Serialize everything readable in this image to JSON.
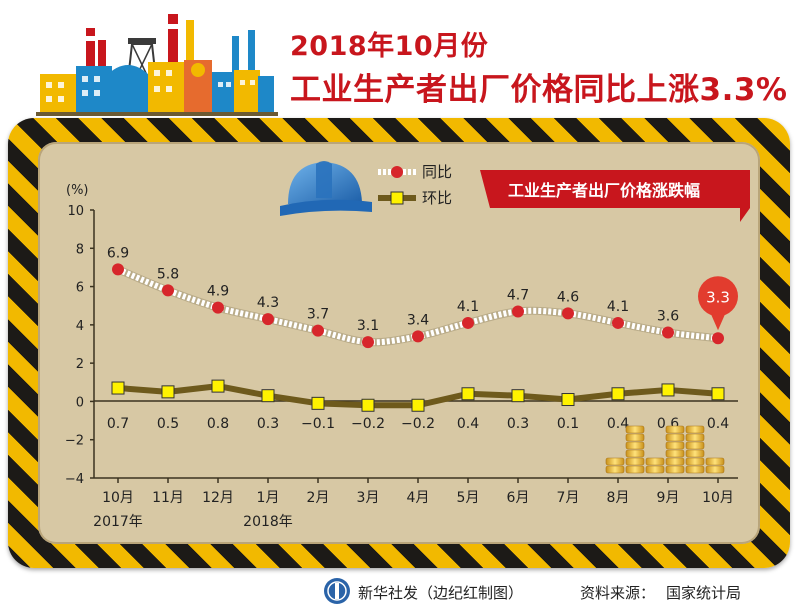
{
  "title": {
    "line1": "2018年10月份",
    "line2": "工业生产者出厂价格同比上涨3.3%"
  },
  "chart_data": {
    "type": "line",
    "title": "工业生产者出厂价格涨跌幅",
    "ylabel": "(%)",
    "ylim": [
      -4,
      10
    ],
    "yticks": [
      10,
      8,
      6,
      4,
      2,
      0,
      -2,
      -4
    ],
    "categories": [
      "10月",
      "11月",
      "12月",
      "1月",
      "2月",
      "3月",
      "4月",
      "5月",
      "6月",
      "7月",
      "8月",
      "9月",
      "10月"
    ],
    "year_labels": [
      {
        "index": 0,
        "label": "2017年"
      },
      {
        "index": 3,
        "label": "2018年"
      }
    ],
    "series": [
      {
        "name": "同比",
        "values": [
          6.9,
          5.8,
          4.9,
          4.3,
          3.7,
          3.1,
          3.4,
          4.1,
          4.7,
          4.6,
          4.1,
          3.6,
          3.3
        ],
        "labels": [
          "6.9",
          "5.8",
          "4.9",
          "4.3",
          "3.7",
          "3.1",
          "3.4",
          "4.1",
          "4.7",
          "4.6",
          "4.1",
          "3.6",
          "3.3"
        ],
        "line_color": "#ffffff",
        "marker_color": "#d7262b"
      },
      {
        "name": "环比",
        "values": [
          0.7,
          0.5,
          0.8,
          0.3,
          -0.1,
          -0.2,
          -0.2,
          0.4,
          0.3,
          0.1,
          0.4,
          0.6,
          0.4
        ],
        "labels": [
          "0.7",
          "0.5",
          "0.8",
          "0.3",
          "−0.1",
          "−0.2",
          "−0.2",
          "0.4",
          "0.3",
          "0.1",
          "0.4",
          "0.6",
          "0.4"
        ],
        "line_color": "#6e5a1c",
        "marker_color": "#fff200"
      }
    ],
    "highlight": {
      "series": 0,
      "index": 12,
      "label": "3.3",
      "color": "#e23c2e"
    },
    "grid": false,
    "legend": "top-center"
  },
  "colors": {
    "title": "#c8161d",
    "panel": "#d7c8a4",
    "banner": "#c8161d",
    "hazard_yellow": "#f2b900",
    "hazard_black": "#1c1a17"
  },
  "icons": [
    "hard-hat-icon",
    "factory-skyline-icon",
    "coin-stacks-icon",
    "xinhua-logo-icon"
  ],
  "footer": {
    "credit": "新华社发（边纪红制图）",
    "source_label": "资料来源：",
    "source": "国家统计局"
  }
}
